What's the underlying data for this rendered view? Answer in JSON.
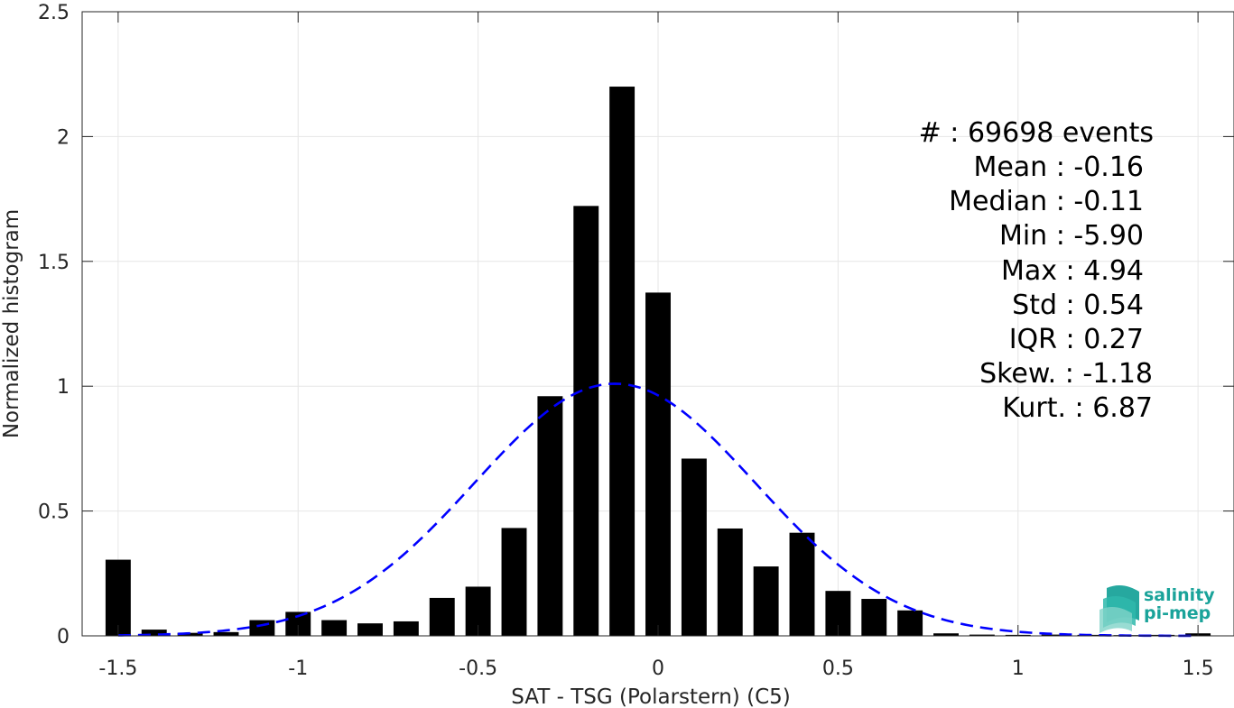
{
  "chart_data": {
    "type": "bar",
    "xlabel": "SAT - TSG (Polarstern) (C5)",
    "ylabel": "Normalized histogram",
    "xlim": [
      -1.6,
      1.6
    ],
    "ylim": [
      0,
      2.5
    ],
    "grid": true,
    "xticks": [
      -1.5,
      -1,
      -0.5,
      0,
      0.5,
      1,
      1.5
    ],
    "xtick_labels": [
      "-1.5",
      "-1",
      "-0.5",
      "0",
      "0.5",
      "1",
      "1.5"
    ],
    "yticks": [
      0,
      0.5,
      1,
      1.5,
      2,
      2.5
    ],
    "ytick_labels": [
      "0",
      "0.5",
      "1",
      "1.5",
      "2",
      "2.5"
    ],
    "bar_width": 0.07,
    "x": [
      -1.5,
      -1.4,
      -1.3,
      -1.2,
      -1.1,
      -1.0,
      -0.9,
      -0.8,
      -0.7,
      -0.6,
      -0.5,
      -0.4,
      -0.3,
      -0.2,
      -0.1,
      0.0,
      0.1,
      0.2,
      0.3,
      0.4,
      0.5,
      0.6,
      0.7,
      0.8,
      0.9,
      1.0,
      1.1,
      1.2,
      1.3,
      1.4,
      1.5
    ],
    "values": [
      0.305,
      0.025,
      0.012,
      0.015,
      0.063,
      0.096,
      0.063,
      0.05,
      0.058,
      0.152,
      0.197,
      0.432,
      0.96,
      1.722,
      2.2,
      1.375,
      0.71,
      0.43,
      0.278,
      0.413,
      0.18,
      0.148,
      0.102,
      0.01,
      0.005,
      0.004,
      0.005,
      0.004,
      0.003,
      0.004,
      0.01
    ],
    "fit_curve": {
      "style": "dashed",
      "color": "#0000ff",
      "mean": -0.12,
      "std": 0.39,
      "peak": 1.01,
      "x_range": [
        -1.5,
        1.5
      ]
    },
    "bar_color": "#000000"
  },
  "stats": [
    {
      "label": "#  : 69698 events"
    },
    {
      "label": "Mean : -0.16"
    },
    {
      "label": "Median : -0.11"
    },
    {
      "label": "Min : -5.90"
    },
    {
      "label": "Max : 4.94"
    },
    {
      "label": "Std : 0.54"
    },
    {
      "label": "IQR : 0.27"
    },
    {
      "label": "Skew. : -1.18"
    },
    {
      "label": "Kurt. : 6.87"
    }
  ],
  "logo": {
    "line1": "salinity",
    "line2": "pi-mep",
    "color": "#1aa39a"
  }
}
